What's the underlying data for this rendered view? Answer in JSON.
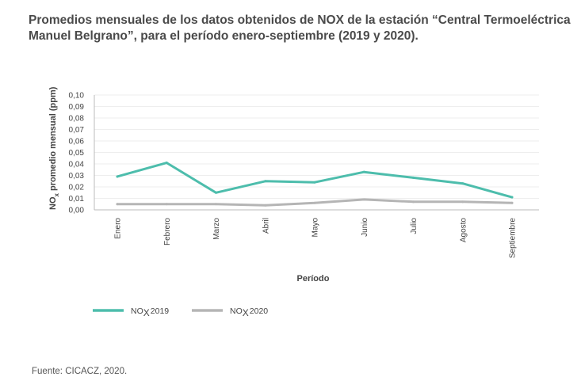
{
  "title": "Promedios mensuales de los datos obtenidos de NOX de la estación “Central Termoeléctrica Manuel Belgrano”, para el período enero-septiembre (2019 y 2020).",
  "source": "Fuente: CICACZ, 2020.",
  "colors": {
    "series_2019": "#4dbdac",
    "series_2020": "#b5b5b5",
    "grid": "#eeeeee",
    "axis": "#bbbbbb"
  },
  "chart_data": {
    "type": "line",
    "xlabel": "Período",
    "ylabel_main": "NO",
    "ylabel_sub": "x",
    "ylabel_rest": " promedio mensual (ppm)",
    "ylim": [
      0,
      0.1
    ],
    "yticks": [
      "0,00",
      "0,01",
      "0,02",
      "0,03",
      "0,04",
      "0,05",
      "0,06",
      "0,07",
      "0,08",
      "0,09",
      "0,10"
    ],
    "grid": true,
    "legend": "bottom-left",
    "categories": [
      "Enero",
      "Febrero",
      "Marzo",
      "Abril",
      "Mayo",
      "Junio",
      "Julio",
      "Agosto",
      "Septiembre"
    ],
    "series": [
      {
        "name_prefix": "NO",
        "name_sub": "X",
        "name_suffix": "2019",
        "color": "#4dbdac",
        "values": [
          0.029,
          0.041,
          0.015,
          0.025,
          0.024,
          0.033,
          0.028,
          0.023,
          0.011
        ]
      },
      {
        "name_prefix": "NO",
        "name_sub": "X",
        "name_suffix": "2020",
        "color": "#b5b5b5",
        "values": [
          0.005,
          0.005,
          0.005,
          0.004,
          0.006,
          0.009,
          0.007,
          0.007,
          0.006
        ]
      }
    ]
  }
}
